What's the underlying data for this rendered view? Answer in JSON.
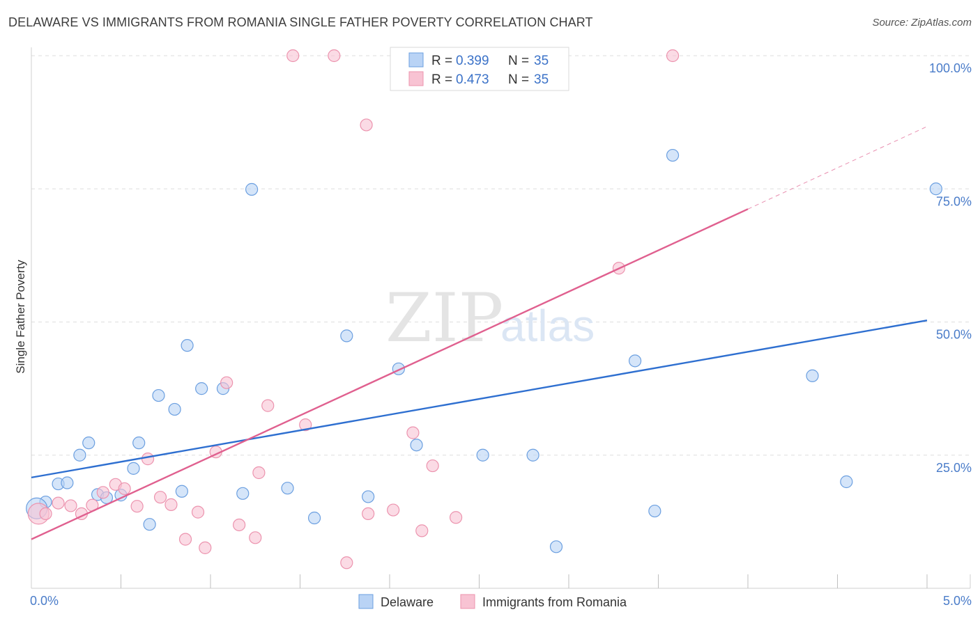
{
  "chart_data": {
    "type": "scatter",
    "title": "DELAWARE VS IMMIGRANTS FROM ROMANIA SINGLE FATHER POVERTY CORRELATION CHART",
    "source": "Source: ZipAtlas.com",
    "xlabel": "",
    "ylabel": "Single Father Poverty",
    "xlim": [
      0,
      5
    ],
    "ylim": [
      0,
      100
    ],
    "x_tick_labels": {
      "min": "0.0%",
      "max": "5.0%"
    },
    "y_ticks": [
      {
        "value": 25,
        "label": "25.0%"
      },
      {
        "value": 50,
        "label": "50.0%"
      },
      {
        "value": 75,
        "label": "75.0%"
      },
      {
        "value": 100,
        "label": "100.0%"
      }
    ],
    "grid": true,
    "watermark": {
      "zip": "ZIP",
      "atlas": "atlas"
    },
    "legend": {
      "r_label": "R = ",
      "n_label": "N = ",
      "entries": [
        {
          "r": "0.399",
          "n": "35"
        },
        {
          "r": "0.473",
          "n": "35"
        }
      ]
    },
    "series": [
      {
        "name": "Delaware",
        "color": "#6b9fe0",
        "fill": "#b9d3f5",
        "line_color": "#2e6fd0",
        "trend": {
          "x0": 0,
          "y0": 20.8,
          "x1": 5,
          "y1": 50.3
        },
        "points": [
          [
            0.08,
            16.2
          ],
          [
            0.15,
            19.6
          ],
          [
            0.2,
            19.8
          ],
          [
            0.27,
            25.0
          ],
          [
            0.32,
            27.3
          ],
          [
            0.37,
            17.6
          ],
          [
            0.42,
            17.0
          ],
          [
            0.5,
            17.5
          ],
          [
            0.57,
            22.5
          ],
          [
            0.6,
            27.3
          ],
          [
            0.66,
            12.0
          ],
          [
            0.71,
            36.2
          ],
          [
            0.8,
            33.6
          ],
          [
            0.84,
            18.2
          ],
          [
            0.87,
            45.6
          ],
          [
            0.95,
            37.5
          ],
          [
            1.07,
            37.5
          ],
          [
            1.18,
            17.8
          ],
          [
            1.23,
            74.9
          ],
          [
            1.43,
            18.8
          ],
          [
            1.58,
            13.2
          ],
          [
            1.76,
            47.4
          ],
          [
            1.88,
            17.2
          ],
          [
            2.05,
            41.2
          ],
          [
            2.15,
            26.9
          ],
          [
            2.52,
            25.0
          ],
          [
            2.8,
            25.0
          ],
          [
            2.93,
            7.8
          ],
          [
            3.37,
            42.7
          ],
          [
            3.48,
            14.5
          ],
          [
            3.58,
            81.3
          ],
          [
            4.36,
            39.9
          ],
          [
            4.55,
            20.0
          ],
          [
            5.05,
            75.0
          ],
          [
            0.03,
            15.0
          ]
        ]
      },
      {
        "name": "Immigrants from Romania",
        "color": "#ec93ae",
        "fill": "#f8c3d3",
        "line_color": "#e0608f",
        "trend": {
          "x0": 0,
          "y0": 9.2,
          "x1": 4.0,
          "y1": 71.2
        },
        "trend_ext": {
          "x0": 4.0,
          "y0": 71.2,
          "x1": 5.0,
          "y1": 86.7
        },
        "points": [
          [
            0.04,
            14.0
          ],
          [
            0.08,
            14.0
          ],
          [
            0.15,
            16.0
          ],
          [
            0.22,
            15.5
          ],
          [
            0.28,
            14.0
          ],
          [
            0.34,
            15.6
          ],
          [
            0.4,
            18.0
          ],
          [
            0.47,
            19.5
          ],
          [
            0.52,
            18.7
          ],
          [
            0.59,
            15.4
          ],
          [
            0.65,
            24.3
          ],
          [
            0.72,
            17.1
          ],
          [
            0.78,
            15.7
          ],
          [
            0.86,
            9.2
          ],
          [
            0.93,
            14.3
          ],
          [
            0.97,
            7.6
          ],
          [
            1.03,
            25.6
          ],
          [
            1.09,
            38.6
          ],
          [
            1.16,
            11.9
          ],
          [
            1.25,
            9.5
          ],
          [
            1.27,
            21.7
          ],
          [
            1.32,
            34.3
          ],
          [
            1.46,
            100.0
          ],
          [
            1.53,
            30.7
          ],
          [
            1.69,
            100.0
          ],
          [
            1.76,
            4.8
          ],
          [
            1.87,
            87.0
          ],
          [
            1.88,
            14.0
          ],
          [
            2.02,
            14.7
          ],
          [
            2.13,
            29.2
          ],
          [
            2.18,
            10.8
          ],
          [
            2.24,
            23.0
          ],
          [
            2.37,
            13.3
          ],
          [
            3.28,
            60.1
          ],
          [
            3.58,
            100.0
          ]
        ]
      }
    ]
  }
}
